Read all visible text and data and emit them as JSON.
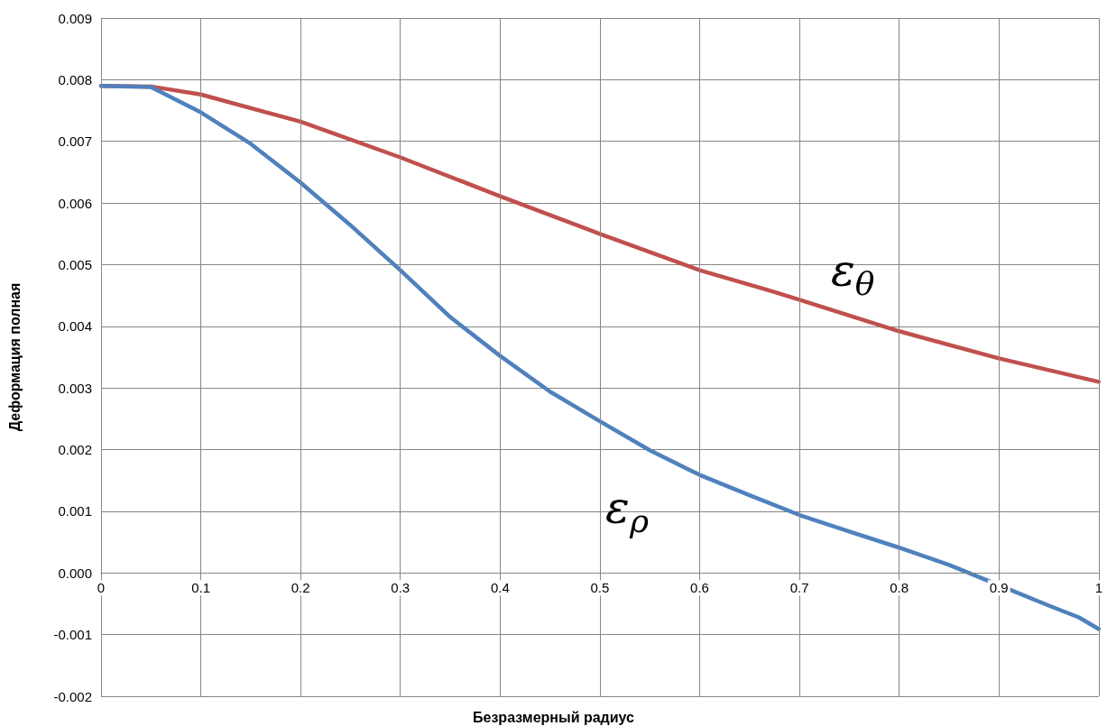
{
  "chart_data": {
    "type": "line",
    "xlabel": "Безразмерный радиус",
    "ylabel": "Деформация полная",
    "xlim": [
      0,
      1
    ],
    "xticks": [
      0,
      0.1,
      0.2,
      0.3,
      0.4,
      0.5,
      0.6,
      0.7,
      0.8,
      0.9,
      1
    ],
    "ylim": [
      -0.002,
      0.009
    ],
    "yticks": [
      -0.002,
      -0.001,
      {
        "value": 0,
        "label": "0.000"
      },
      0.001,
      0.002,
      0.003,
      0.004,
      0.005,
      0.006,
      0.007,
      0.008,
      0.009
    ],
    "grid": true,
    "marker": "none",
    "line_style": "solid",
    "series": [
      {
        "color": "#c0504d",
        "x": [
          0,
          0.05,
          0.1,
          0.2,
          0.3,
          0.4,
          0.5,
          0.6,
          0.67,
          0.7,
          0.8,
          0.9,
          1
        ],
        "values": [
          0.0079,
          0.00789,
          0.00776,
          0.00732,
          0.00674,
          0.00611,
          0.0055,
          0.00491,
          0.00458,
          0.00443,
          0.00392,
          0.00348,
          0.0031
        ]
      },
      {
        "color": "#4f81bd",
        "x": [
          0,
          0.05,
          0.1,
          0.15,
          0.2,
          0.25,
          0.3,
          0.35,
          0.4,
          0.45,
          0.5,
          0.55,
          0.6,
          0.65,
          0.7,
          0.75,
          0.8,
          0.85,
          0.9,
          0.95,
          0.98,
          1
        ],
        "values": [
          0.0079,
          0.00788,
          0.00747,
          0.00696,
          0.00633,
          0.00564,
          0.00491,
          0.00415,
          0.00352,
          0.00294,
          0.00246,
          0.00199,
          0.00159,
          0.00126,
          0.00094,
          0.00067,
          0.00041,
          0.00013,
          -0.0002,
          -0.00053,
          -0.00072,
          -0.00091
        ]
      }
    ],
    "annotations": [
      "ε$_{θ}$",
      "ε$_{ρ}$"
    ]
  }
}
